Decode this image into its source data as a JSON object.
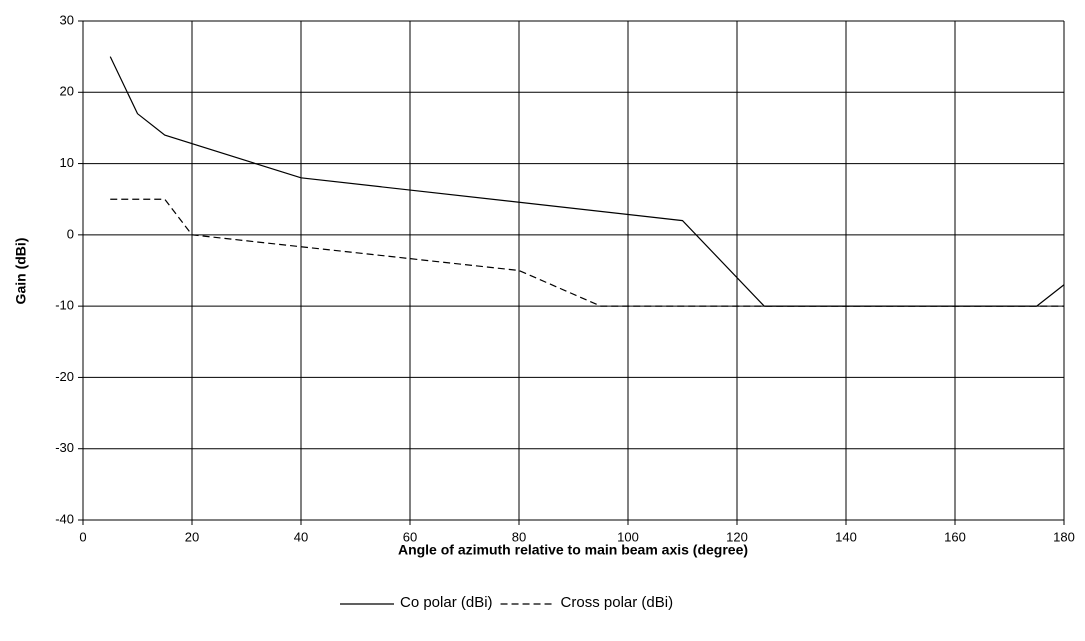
{
  "chart_data": {
    "type": "line",
    "xlabel": "Angle of azimuth relative to main beam axis (degree)",
    "ylabel": "Gain (dBi)",
    "series": [
      {
        "name": "Co polar (dBi)",
        "color": "#000000",
        "dash": "solid",
        "x": [
          5,
          10,
          15,
          40,
          110,
          125,
          175,
          180
        ],
        "values": [
          25,
          17,
          14,
          8,
          2,
          -10,
          -10,
          -7
        ]
      },
      {
        "name": "Cross polar (dBi)",
        "color": "#000000",
        "dash": "dashed",
        "x": [
          5,
          15,
          20,
          80,
          95,
          180
        ],
        "values": [
          5,
          5,
          0,
          -5,
          -10,
          -10
        ]
      }
    ],
    "xlim": [
      0,
      180
    ],
    "xticks": [
      0,
      20,
      40,
      60,
      80,
      100,
      120,
      140,
      160,
      180
    ],
    "ylim": [
      -40,
      30
    ],
    "yticks": [
      -40,
      -30,
      -20,
      -10,
      0,
      10,
      20,
      30
    ],
    "grid": true,
    "legend": "bottom"
  }
}
